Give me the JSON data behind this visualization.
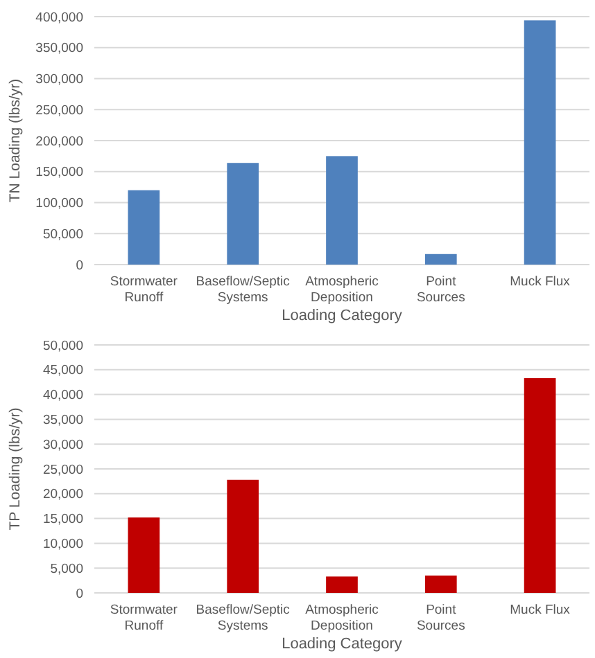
{
  "chart_data": [
    {
      "type": "bar",
      "xlabel": "Loading Category",
      "ylabel": "TN Loading (lbs/yr)",
      "categories": [
        "Stormwater Runoff",
        "Baseflow/Septic Systems",
        "Atmospheric Deposition",
        "Point Sources",
        "Muck Flux"
      ],
      "values": [
        120000,
        164000,
        175000,
        17000,
        394000
      ],
      "color": "#4f81bd",
      "ylim": [
        0,
        400000
      ],
      "yticks": [
        0,
        {
          "value": 50000,
          "label": "50,000"
        },
        {
          "value": 100000,
          "label": "100,000"
        },
        {
          "value": 150000,
          "label": "150,000"
        },
        {
          "value": 200000,
          "label": "200,000"
        },
        {
          "value": 250000,
          "label": "250,000"
        },
        {
          "value": 300000,
          "label": "300,000"
        },
        {
          "value": 350000,
          "label": "350,000"
        },
        {
          "value": 400000,
          "label": "400,000"
        }
      ],
      "grid": "y"
    },
    {
      "type": "bar",
      "xlabel": "Loading Category",
      "ylabel": "TP Loading (lbs/yr)",
      "categories": [
        "Stormwater Runoff",
        "Baseflow/Septic Systems",
        "Atmospheric Deposition",
        "Point Sources",
        "Muck Flux"
      ],
      "values": [
        15200,
        22800,
        3300,
        3500,
        43300
      ],
      "color": "#c00000",
      "ylim": [
        0,
        50000
      ],
      "yticks": [
        0,
        {
          "value": 5000,
          "label": "5,000"
        },
        {
          "value": 10000,
          "label": "10,000"
        },
        {
          "value": 15000,
          "label": "15,000"
        },
        {
          "value": 20000,
          "label": "20,000"
        },
        {
          "value": 25000,
          "label": "25,000"
        },
        {
          "value": 30000,
          "label": "30,000"
        },
        {
          "value": 35000,
          "label": "35,000"
        },
        {
          "value": 40000,
          "label": "40,000"
        },
        {
          "value": 45000,
          "label": "45,000"
        },
        {
          "value": 50000,
          "label": "50,000"
        }
      ],
      "grid": "y"
    }
  ]
}
